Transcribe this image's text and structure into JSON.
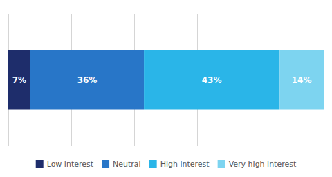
{
  "chart_data": {
    "type": "bar",
    "orientation": "horizontal",
    "stacked": true,
    "categories": [
      null
    ],
    "series": [
      {
        "name": "Low interest",
        "color": "#1e2d6b",
        "values": [
          7
        ],
        "value_labels": [
          "7%"
        ]
      },
      {
        "name": "Neutral",
        "color": "#2876c8",
        "values": [
          36
        ],
        "value_labels": [
          "36%"
        ]
      },
      {
        "name": "High interest",
        "color": "#2ab5e8",
        "values": [
          43
        ],
        "value_labels": [
          "43%"
        ]
      },
      {
        "name": "Very high interest",
        "color": "#7dd4f0",
        "values": [
          14
        ],
        "value_labels": [
          "14%"
        ]
      }
    ],
    "xlim": [
      0,
      100
    ],
    "xticks": [
      0,
      20,
      40,
      60,
      80,
      100
    ],
    "grid": true,
    "legend": "bottom",
    "data_labels": true,
    "tick_labels": false
  }
}
